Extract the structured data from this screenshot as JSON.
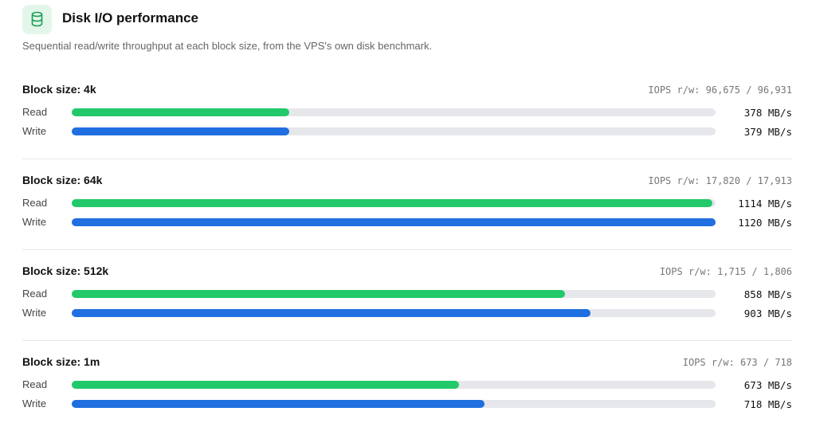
{
  "header": {
    "title": "Disk I/O performance",
    "subtitle": "Sequential read/write throughput at each block size, from the VPS's own disk benchmark."
  },
  "groups": [
    {
      "title": "Block size: 4k",
      "iops": "IOPS r/w: 96,675 / 96,931",
      "rows": [
        {
          "label": "Read",
          "value": 378,
          "value_label": "378 MB/s",
          "color": "#22c96a"
        },
        {
          "label": "Write",
          "value": 379,
          "value_label": "379 MB/s",
          "color": "#1f6fe0"
        }
      ]
    },
    {
      "title": "Block size: 64k",
      "iops": "IOPS r/w: 17,820 / 17,913",
      "rows": [
        {
          "label": "Read",
          "value": 1114,
          "value_label": "1114 MB/s",
          "color": "#22c96a"
        },
        {
          "label": "Write",
          "value": 1120,
          "value_label": "1120 MB/s",
          "color": "#1f6fe0"
        }
      ]
    },
    {
      "title": "Block size: 512k",
      "iops": "IOPS r/w: 1,715 / 1,806",
      "rows": [
        {
          "label": "Read",
          "value": 858,
          "value_label": "858 MB/s",
          "color": "#22c96a"
        },
        {
          "label": "Write",
          "value": 903,
          "value_label": "903 MB/s",
          "color": "#1f6fe0"
        }
      ]
    },
    {
      "title": "Block size: 1m",
      "iops": "IOPS r/w: 673 / 718",
      "rows": [
        {
          "label": "Read",
          "value": 673,
          "value_label": "673 MB/s",
          "color": "#22c96a"
        },
        {
          "label": "Write",
          "value": 718,
          "value_label": "718 MB/s",
          "color": "#1f6fe0"
        }
      ]
    }
  ]
}
